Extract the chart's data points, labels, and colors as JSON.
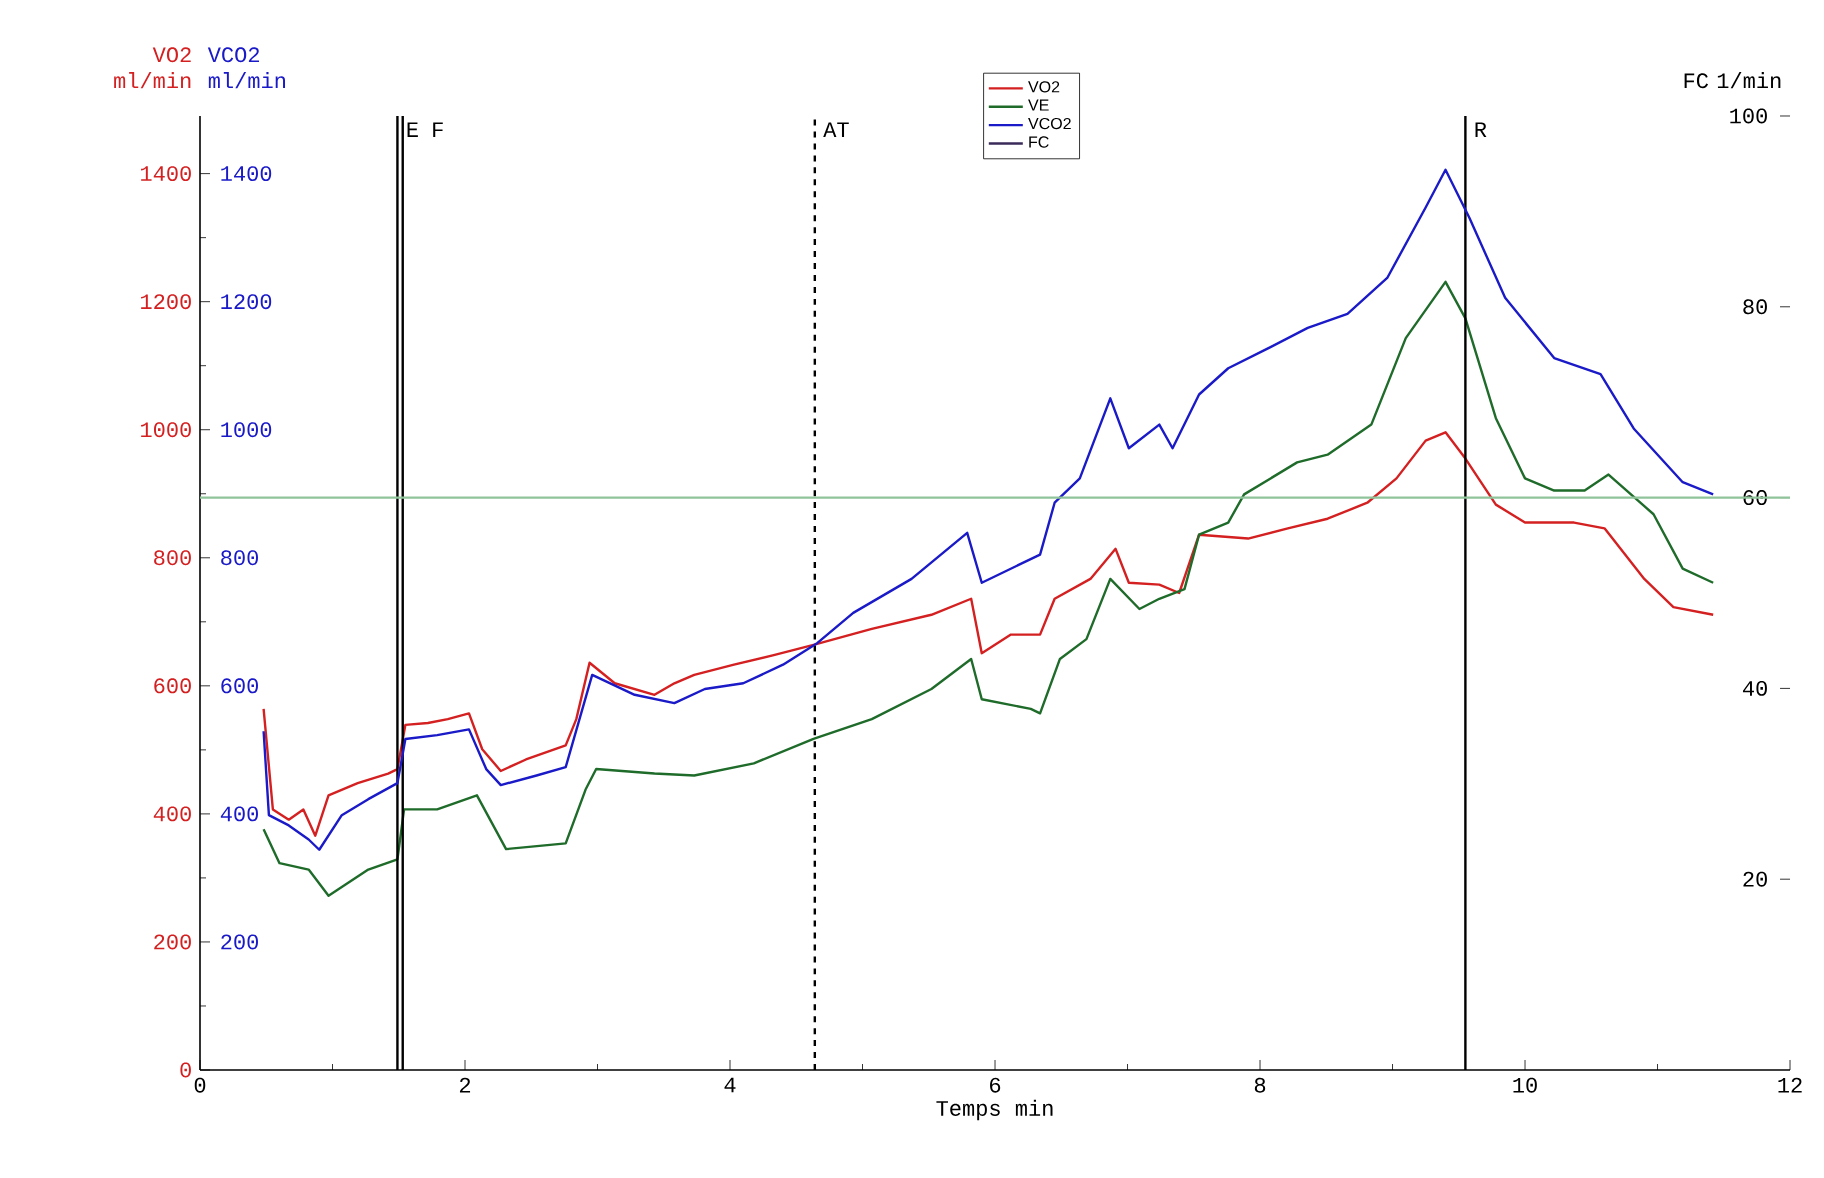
{
  "chart_data": {
    "type": "line",
    "xlabel": "Temps min",
    "ylabel": "VO2 ml/min",
    "y2label": "VCO2 ml/min",
    "y3label": "FC 1/min",
    "xlim": [
      0,
      12
    ],
    "xticks": [
      0,
      2,
      4,
      6,
      8,
      10,
      12
    ],
    "ylim": [
      0,
      1490
    ],
    "yticks": [
      0,
      200,
      400,
      600,
      800,
      1000,
      1200,
      1400
    ],
    "y2lim": [
      0,
      1490
    ],
    "y2ticks": [
      200,
      400,
      600,
      800,
      1000,
      1200,
      1400
    ],
    "y3lim": [
      0,
      100
    ],
    "y3ticks": [
      20,
      40,
      60,
      80,
      100
    ],
    "legend": "top",
    "marker": "none",
    "line_style": "solid",
    "grid": false,
    "series": [
      {
        "name": "VO2",
        "color": "#d42020",
        "axis": "y",
        "x": [
          0.48,
          0.55,
          0.67,
          0.78,
          0.87,
          0.97,
          1.19,
          1.42,
          1.49,
          1.55,
          1.72,
          1.87,
          2.03,
          2.13,
          2.27,
          2.46,
          2.76,
          2.84,
          2.94,
          3.13,
          3.43,
          3.58,
          3.73,
          4.03,
          4.33,
          4.63,
          5.07,
          5.52,
          5.82,
          5.9,
          6.12,
          6.34,
          6.45,
          6.72,
          6.91,
          7.01,
          7.24,
          7.39,
          7.54,
          7.91,
          8.21,
          8.51,
          8.81,
          9.03,
          9.25,
          9.4,
          9.55,
          9.78,
          10.0,
          10.37,
          10.6,
          10.9,
          11.12,
          11.42
        ],
        "values": [
          564,
          407,
          391,
          407,
          366,
          429,
          448,
          463,
          470,
          539,
          542,
          548,
          557,
          501,
          467,
          485,
          507,
          548,
          636,
          604,
          586,
          604,
          617,
          633,
          648,
          664,
          689,
          711,
          736,
          651,
          680,
          680,
          736,
          767,
          814,
          761,
          758,
          745,
          836,
          830,
          846,
          861,
          886,
          924,
          983,
          996,
          955,
          883,
          855,
          855,
          846,
          767,
          723,
          711
        ]
      },
      {
        "name": "VE",
        "color": "#1e6b2a",
        "axis": "y",
        "x": [
          0.48,
          0.6,
          0.82,
          0.97,
          1.27,
          1.49,
          1.54,
          1.79,
          2.09,
          2.31,
          2.76,
          2.91,
          2.99,
          3.43,
          3.73,
          4.18,
          4.63,
          5.07,
          5.52,
          5.82,
          5.9,
          6.27,
          6.34,
          6.49,
          6.69,
          6.87,
          7.09,
          7.24,
          7.43,
          7.54,
          7.76,
          7.88,
          8.28,
          8.51,
          8.84,
          9.1,
          9.4,
          9.55,
          9.78,
          10.0,
          10.22,
          10.45,
          10.63,
          10.97,
          11.19,
          11.42
        ],
        "values": [
          376,
          323,
          313,
          272,
          313,
          329,
          407,
          407,
          429,
          345,
          354,
          438,
          470,
          463,
          460,
          479,
          517,
          548,
          595,
          642,
          579,
          564,
          557,
          642,
          673,
          767,
          720,
          736,
          751,
          836,
          855,
          899,
          949,
          961,
          1008,
          1143,
          1231,
          1174,
          1018,
          924,
          905,
          905,
          930,
          868,
          783,
          761
        ]
      },
      {
        "name": "VCO2",
        "color": "#1a1ac8",
        "axis": "y2",
        "x": [
          0.48,
          0.52,
          0.67,
          0.82,
          0.9,
          1.07,
          1.27,
          1.49,
          1.55,
          1.79,
          2.03,
          2.16,
          2.27,
          2.54,
          2.76,
          2.96,
          3.28,
          3.58,
          3.81,
          4.1,
          4.4,
          4.66,
          4.93,
          5.37,
          5.79,
          5.9,
          6.34,
          6.45,
          6.64,
          6.87,
          7.01,
          7.24,
          7.34,
          7.54,
          7.76,
          8.06,
          8.36,
          8.66,
          8.96,
          9.25,
          9.4,
          9.58,
          9.85,
          10.22,
          10.57,
          10.82,
          11.19,
          11.42
        ],
        "values": [
          529,
          398,
          382,
          360,
          344,
          398,
          423,
          448,
          517,
          523,
          532,
          470,
          445,
          460,
          473,
          617,
          586,
          573,
          595,
          604,
          633,
          667,
          714,
          767,
          839,
          761,
          805,
          886,
          924,
          1049,
          971,
          1008,
          971,
          1055,
          1096,
          1127,
          1159,
          1181,
          1237,
          1347,
          1406,
          1331,
          1206,
          1112,
          1087,
          1002,
          918,
          899
        ]
      },
      {
        "name": "FC",
        "color": "#3a2a5a",
        "axis": "y3"
      }
    ],
    "ref_lines": [
      {
        "axis": "x",
        "value": 1.49,
        "label": "E",
        "color": "#000000",
        "line_style": "solid"
      },
      {
        "axis": "x",
        "value": 1.53,
        "label": "F",
        "color": "#000000",
        "line_style": "solid"
      },
      {
        "axis": "x",
        "value": 4.64,
        "label": "AT",
        "color": "#000000",
        "line_style": "dashed"
      },
      {
        "axis": "x",
        "value": 9.55,
        "label": "R",
        "color": "#000000",
        "line_style": "solid"
      },
      {
        "axis": "y3",
        "value": 60,
        "color": "#8fc39a",
        "line_style": "solid"
      }
    ]
  }
}
